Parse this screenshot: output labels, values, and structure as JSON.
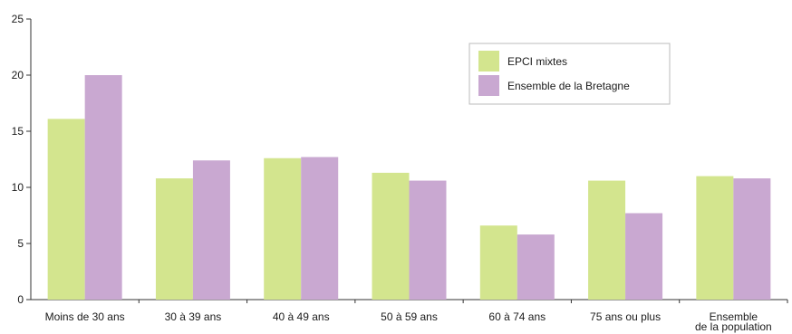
{
  "chart_data": {
    "type": "bar",
    "categories": [
      [
        "Moins de 30 ans"
      ],
      [
        "30 à 39  ans"
      ],
      [
        "40 à 49  ans"
      ],
      [
        "50 à 59 ans"
      ],
      [
        "60 à 74  ans"
      ],
      [
        "75 ans ou plus"
      ],
      [
        "Ensemble",
        "de la population"
      ]
    ],
    "series": [
      {
        "name": "EPCI mixtes",
        "color": "#d3e58e",
        "values": [
          16.1,
          10.8,
          12.6,
          11.3,
          6.6,
          10.6,
          11.0
        ]
      },
      {
        "name": "Ensemble de la Bretagne",
        "color": "#c9a8d1",
        "values": [
          20.0,
          12.4,
          12.7,
          10.6,
          5.8,
          7.7,
          10.8
        ]
      }
    ],
    "yticks": [
      "0",
      "5",
      "10",
      "15",
      "20",
      "25"
    ],
    "ylim": [
      0,
      25
    ],
    "legend_position": "top-right",
    "grid": false
  }
}
